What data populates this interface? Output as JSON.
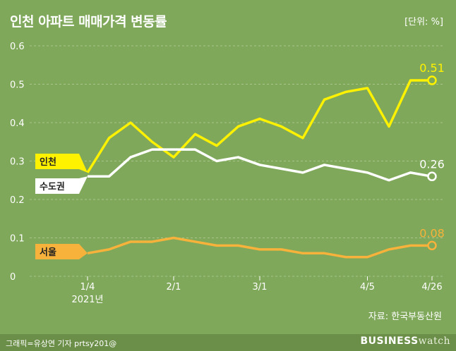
{
  "header": {
    "title": "인천 아파트 매매가격 변동률",
    "unit": "[단위: %]"
  },
  "source": "자료: 한국부동산원",
  "footer": {
    "credit": "그래픽=유상연 기자 prtsy201@",
    "logo_main": "BUSINESS",
    "logo_sub": "watch"
  },
  "chart_data": {
    "type": "line",
    "title": "인천 아파트 매매가격 변동률",
    "ylabel": "",
    "xlabel": "",
    "ylim": [
      0,
      0.6
    ],
    "yticks": [
      "0",
      "0.1",
      "0.2",
      "0.3",
      "0.4",
      "0.5",
      "0.6"
    ],
    "grid": true,
    "x_tick_labels": [
      {
        "index": 0,
        "label": "1/4",
        "sub": "2021년"
      },
      {
        "index": 4,
        "label": "2/1",
        "sub": ""
      },
      {
        "index": 8,
        "label": "3/1",
        "sub": ""
      },
      {
        "index": 13,
        "label": "4/5",
        "sub": ""
      },
      {
        "index": 16,
        "label": "4/26",
        "sub": ""
      }
    ],
    "colors": {
      "incheon": "#fff200",
      "capital": "#ffffff",
      "seoul": "#f7b23b"
    },
    "series": [
      {
        "key": "incheon",
        "name": "인천",
        "end_label": "0.51",
        "values": [
          0.27,
          0.36,
          0.4,
          0.35,
          0.31,
          0.37,
          0.34,
          0.39,
          0.41,
          0.39,
          0.36,
          0.46,
          0.48,
          0.49,
          0.39,
          0.51,
          0.51
        ]
      },
      {
        "key": "capital",
        "name": "수도권",
        "end_label": "0.26",
        "values": [
          0.26,
          0.26,
          0.31,
          0.33,
          0.33,
          0.33,
          0.3,
          0.31,
          0.29,
          0.28,
          0.27,
          0.29,
          0.28,
          0.27,
          0.25,
          0.27,
          0.26
        ]
      },
      {
        "key": "seoul",
        "name": "서울",
        "end_label": "0.08",
        "values": [
          0.06,
          0.07,
          0.09,
          0.09,
          0.1,
          0.09,
          0.08,
          0.08,
          0.07,
          0.07,
          0.06,
          0.06,
          0.05,
          0.05,
          0.07,
          0.08,
          0.08
        ]
      }
    ]
  }
}
